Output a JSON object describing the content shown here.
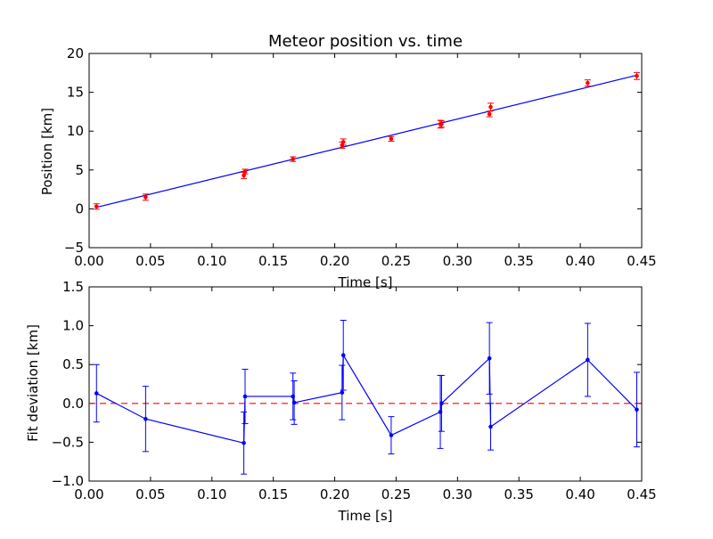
{
  "chart_data": [
    {
      "type": "scatter",
      "title": "Meteor position vs. time",
      "xlabel": "Time [s]",
      "ylabel": "Position [km]",
      "xlim": [
        0.0,
        0.45
      ],
      "ylim": [
        -5,
        20
      ],
      "xticks": [
        "0.00",
        "0.05",
        "0.10",
        "0.15",
        "0.20",
        "0.25",
        "0.30",
        "0.35",
        "0.40",
        "0.45"
      ],
      "yticks": [
        "−5",
        "0",
        "5",
        "10",
        "15",
        "20"
      ],
      "xtick_values": [
        0,
        0.05,
        0.1,
        0.15,
        0.2,
        0.25,
        0.3,
        0.35,
        0.4,
        0.45
      ],
      "ytick_values": [
        -5,
        0,
        5,
        10,
        15,
        20
      ],
      "series": [
        {
          "kind": "errorbar-points",
          "color": "#ff0000",
          "x": [
            0.006,
            0.046,
            0.126,
            0.127,
            0.166,
            0.206,
            0.207,
            0.246,
            0.286,
            0.287,
            0.326,
            0.327,
            0.406,
            0.446
          ],
          "y": [
            0.3,
            1.5,
            4.3,
            4.8,
            6.4,
            8.2,
            8.6,
            9.0,
            10.9,
            10.9,
            12.2,
            13.1,
            16.2,
            17.1
          ],
          "err": [
            0.35,
            0.4,
            0.4,
            0.3,
            0.3,
            0.4,
            0.4,
            0.3,
            0.5,
            0.4,
            0.35,
            0.5,
            0.4,
            0.45
          ]
        },
        {
          "kind": "fit-line",
          "color": "#0000ff",
          "x": [
            0.006,
            0.446
          ],
          "y": [
            0.2,
            17.2
          ]
        }
      ]
    },
    {
      "type": "line",
      "title": "",
      "xlabel": "Time [s]",
      "ylabel": "Fit deviation [km]",
      "xlim": [
        0.0,
        0.45
      ],
      "ylim": [
        -1.0,
        1.5
      ],
      "xticks": [
        "0.00",
        "0.05",
        "0.10",
        "0.15",
        "0.20",
        "0.25",
        "0.30",
        "0.35",
        "0.40",
        "0.45"
      ],
      "yticks": [
        "−1.0",
        "−0.5",
        "0.0",
        "0.5",
        "1.0",
        "1.5"
      ],
      "xtick_values": [
        0,
        0.05,
        0.1,
        0.15,
        0.2,
        0.25,
        0.3,
        0.35,
        0.4,
        0.45
      ],
      "ytick_values": [
        -1.0,
        -0.5,
        0.0,
        0.5,
        1.0,
        1.5
      ],
      "series": [
        {
          "kind": "deviation-line",
          "color": "#0000ff",
          "x": [
            0.006,
            0.046,
            0.126,
            0.127,
            0.166,
            0.167,
            0.206,
            0.207,
            0.246,
            0.286,
            0.287,
            0.326,
            0.327,
            0.406,
            0.446
          ],
          "y": [
            0.13,
            -0.2,
            -0.51,
            0.09,
            0.09,
            0.01,
            0.14,
            0.62,
            -0.41,
            -0.11,
            0.0,
            0.58,
            -0.3,
            0.56,
            -0.08
          ],
          "err": [
            0.37,
            0.42,
            0.4,
            0.35,
            0.3,
            0.28,
            0.35,
            0.45,
            0.24,
            0.47,
            0.36,
            0.46,
            0.3,
            0.47,
            0.48
          ]
        },
        {
          "kind": "zero-reference",
          "color": "#ff0000",
          "y": 0.0
        }
      ]
    }
  ]
}
